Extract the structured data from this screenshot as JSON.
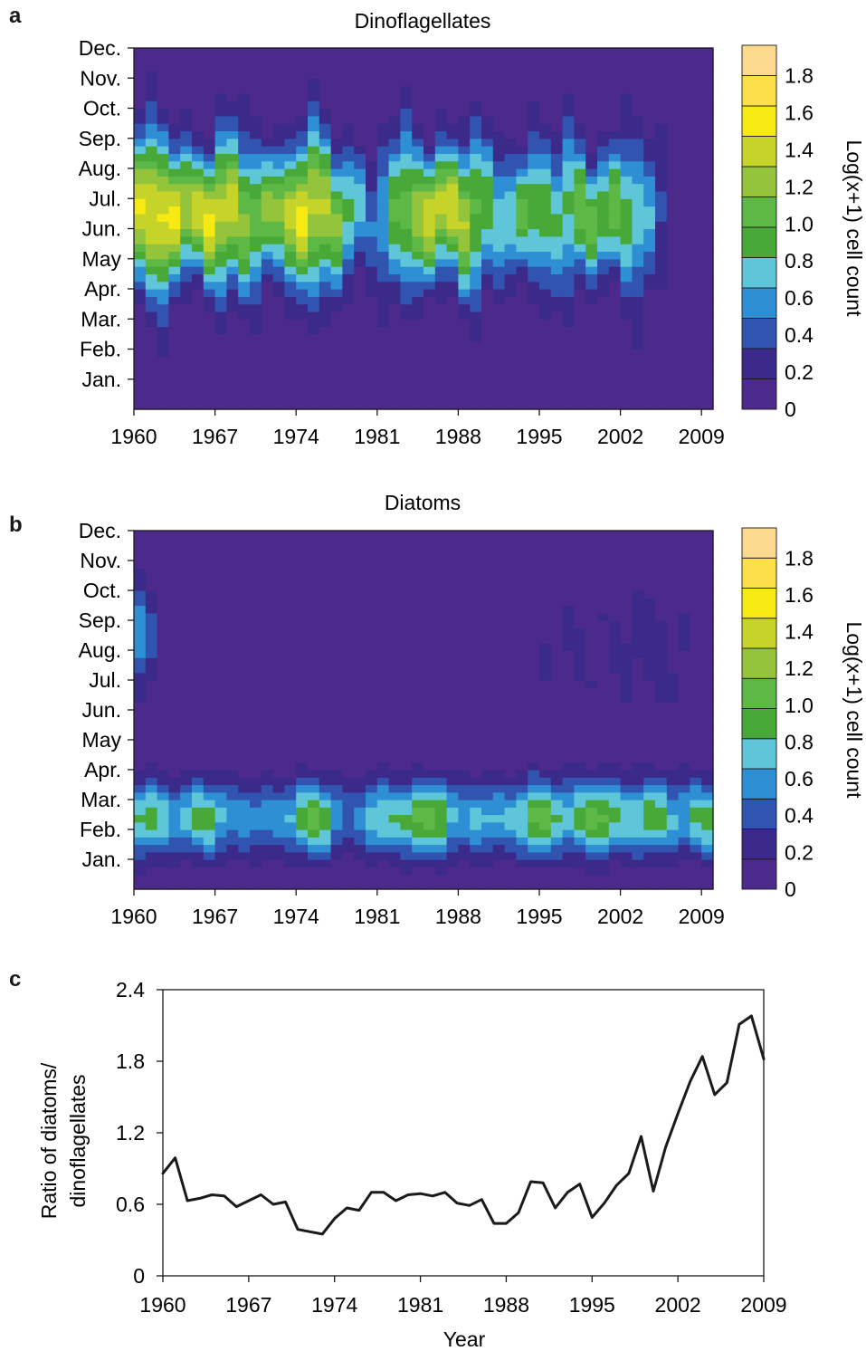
{
  "panels": {
    "a": "a",
    "b": "b",
    "c": "c"
  },
  "colors": {
    "scale": [
      "#4b2a8c",
      "#3b2a8a",
      "#3154b0",
      "#2e8fd4",
      "#5ec6d8",
      "#48a838",
      "#5db845",
      "#94c43b",
      "#c6d42a",
      "#f7ea12",
      "#fde049",
      "#fbd98e"
    ],
    "line": "#1a1a1a"
  },
  "chart_data": [
    {
      "type": "heatmap",
      "panel": "a",
      "title": "Dinoflagellates",
      "years": [
        1960,
        1961,
        1962,
        1963,
        1964,
        1965,
        1966,
        1967,
        1968,
        1969,
        1970,
        1971,
        1972,
        1973,
        1974,
        1975,
        1976,
        1977,
        1978,
        1979,
        1980,
        1981,
        1982,
        1983,
        1984,
        1985,
        1986,
        1987,
        1988,
        1989,
        1990,
        1991,
        1992,
        1993,
        1994,
        1995,
        1996,
        1997,
        1998,
        1999,
        2000,
        2001,
        2002,
        2003,
        2004,
        2005,
        2006,
        2007,
        2008,
        2009,
        2010
      ],
      "months": [
        "Jan.",
        "Feb.",
        "Mar.",
        "Apr.",
        "May",
        "Jun.",
        "Jul.",
        "Aug.",
        "Sep.",
        "Oct.",
        "Nov.",
        "Dec."
      ],
      "x_ticks": [
        1960,
        1967,
        1974,
        1981,
        1988,
        1995,
        2002,
        2009
      ],
      "colorbar": {
        "ticks": [
          0,
          0.2,
          0.4,
          0.6,
          0.8,
          1.0,
          1.2,
          1.4,
          1.6,
          1.8
        ],
        "tick_labels": [
          "0",
          "0.2",
          "0.4",
          "0.6",
          "0.8",
          "1.0",
          "1.2",
          "1.4",
          "1.6",
          "1.8"
        ],
        "label": "Log(x+1) cell count",
        "range": [
          0,
          1.8
        ]
      }
    },
    {
      "type": "heatmap",
      "panel": "b",
      "title": "Diatoms",
      "years": [
        1960,
        1961,
        1962,
        1963,
        1964,
        1965,
        1966,
        1967,
        1968,
        1969,
        1970,
        1971,
        1972,
        1973,
        1974,
        1975,
        1976,
        1977,
        1978,
        1979,
        1980,
        1981,
        1982,
        1983,
        1984,
        1985,
        1986,
        1987,
        1988,
        1989,
        1990,
        1991,
        1992,
        1993,
        1994,
        1995,
        1996,
        1997,
        1998,
        1999,
        2000,
        2001,
        2002,
        2003,
        2004,
        2005,
        2006,
        2007,
        2008,
        2009,
        2010
      ],
      "months": [
        "Jan.",
        "Feb.",
        "Mar.",
        "Apr.",
        "May",
        "Jun.",
        "Jul.",
        "Aug.",
        "Sep.",
        "Oct.",
        "Nov.",
        "Dec."
      ],
      "x_ticks": [
        1960,
        1967,
        1974,
        1981,
        1988,
        1995,
        2002,
        2009
      ],
      "colorbar": {
        "ticks": [
          0,
          0.2,
          0.4,
          0.6,
          0.8,
          1.0,
          1.2,
          1.4,
          1.6,
          1.8
        ],
        "tick_labels": [
          "0",
          "0.2",
          "0.4",
          "0.6",
          "0.8",
          "1.0",
          "1.2",
          "1.4",
          "1.6",
          "1.8"
        ],
        "label": "Log(x+1) cell count",
        "range": [
          0,
          1.8
        ]
      }
    },
    {
      "type": "line",
      "panel": "c",
      "xlabel": "Year",
      "ylabel": "Ratio of diatoms/ dinoflagellates",
      "ylabel_lines": [
        "Ratio of diatoms/",
        "dinoflagellates"
      ],
      "xlim": [
        1960,
        2009
      ],
      "ylim": [
        0,
        2.4
      ],
      "x_ticks": [
        1960,
        1967,
        1974,
        1981,
        1988,
        1995,
        2002,
        2009
      ],
      "y_ticks": [
        0,
        0.6,
        1.2,
        1.8,
        2.4
      ],
      "y_tick_labels": [
        "0",
        "0.6",
        "1.2",
        "1.8",
        "2.4"
      ],
      "x": [
        1960,
        1961,
        1962,
        1963,
        1964,
        1965,
        1966,
        1967,
        1968,
        1969,
        1970,
        1971,
        1972,
        1973,
        1974,
        1975,
        1976,
        1977,
        1978,
        1979,
        1980,
        1981,
        1982,
        1983,
        1984,
        1985,
        1986,
        1987,
        1988,
        1989,
        1990,
        1991,
        1992,
        1993,
        1994,
        1995,
        1996,
        1997,
        1998,
        1999,
        2000,
        2001,
        2002,
        2003,
        2004,
        2005,
        2006,
        2007,
        2008,
        2009
      ],
      "y": [
        0.86,
        0.99,
        0.63,
        0.65,
        0.68,
        0.67,
        0.58,
        0.63,
        0.68,
        0.6,
        0.62,
        0.39,
        0.37,
        0.35,
        0.48,
        0.57,
        0.55,
        0.7,
        0.7,
        0.63,
        0.68,
        0.69,
        0.67,
        0.7,
        0.61,
        0.59,
        0.64,
        0.44,
        0.44,
        0.53,
        0.79,
        0.78,
        0.57,
        0.7,
        0.77,
        0.49,
        0.61,
        0.76,
        0.86,
        1.17,
        0.71,
        1.08,
        1.36,
        1.63,
        1.84,
        1.52,
        1.62,
        2.11,
        2.18,
        1.82
      ]
    }
  ]
}
